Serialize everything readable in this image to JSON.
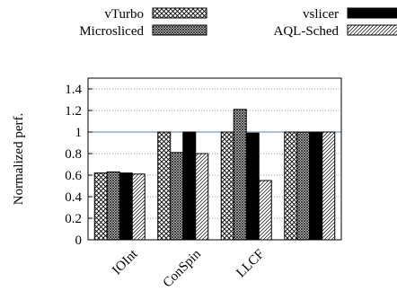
{
  "chart_data": {
    "type": "bar",
    "categories": [
      "IOInt",
      "ConSpin",
      "LLCF",
      ""
    ],
    "series": [
      {
        "name": "vTurbo",
        "values": [
          0.62,
          1.0,
          1.0,
          1.0
        ],
        "pattern": "crosshatch"
      },
      {
        "name": "Microsliced",
        "values": [
          0.63,
          0.81,
          1.21,
          1.0
        ],
        "pattern": "dense-dots"
      },
      {
        "name": "vslicer",
        "values": [
          0.62,
          1.0,
          0.99,
          1.0
        ],
        "pattern": "solid-black"
      },
      {
        "name": "AQL-Sched",
        "values": [
          0.61,
          0.8,
          0.55,
          1.0
        ],
        "pattern": "diagonal-lines"
      }
    ],
    "title": "",
    "xlabel": "",
    "ylabel": "Normalized perf.",
    "yticks": [
      "0",
      "0.2",
      "0.4",
      "0.6",
      "0.8",
      "1",
      "1.2",
      "1.4"
    ],
    "ylim": [
      0,
      1.5
    ],
    "reference_line": 1,
    "reference_color": "#5b7fa6",
    "grid": true,
    "legend_position": "top"
  }
}
